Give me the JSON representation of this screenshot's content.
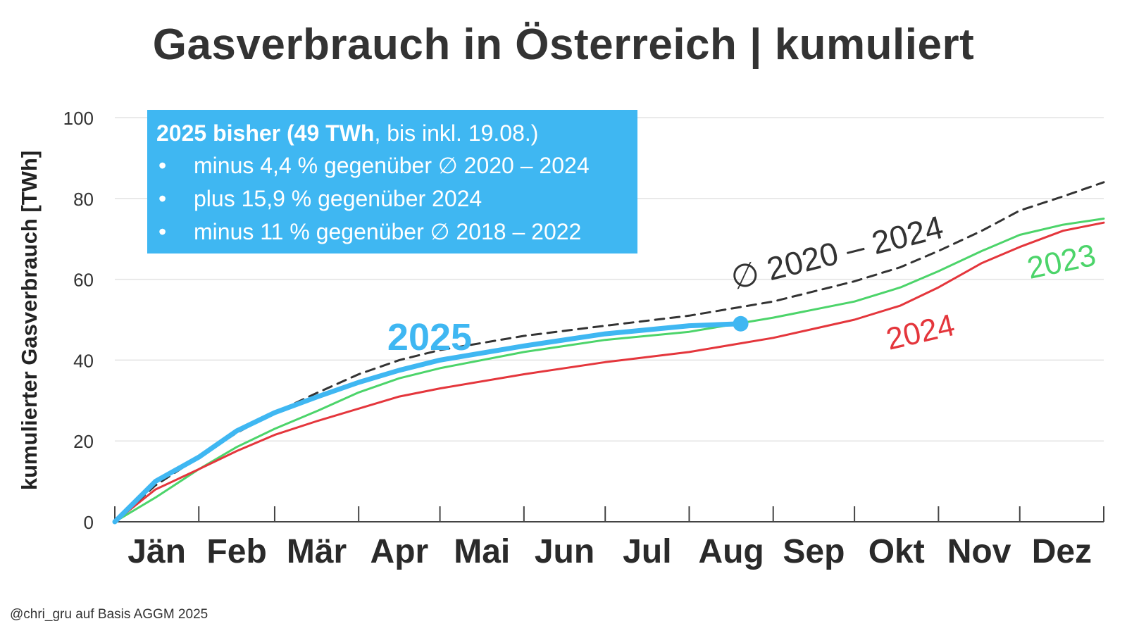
{
  "title": "Gasverbrauch in Österreich | kumuliert",
  "source": "@chri_gru auf Basis AGGM 2025",
  "infobox": {
    "heading_bold": "2025 bisher (49 TWh",
    "heading_rest": ", bis inkl. 19.08.)",
    "bullets": [
      "minus 4,4 % gegenüber ∅ 2020 – 2024",
      "plus 15,9 % gegenüber 2024",
      "minus 11 % gegenüber ∅ 2018 – 2022"
    ]
  },
  "chart_data": {
    "type": "line",
    "title": "Gasverbrauch in Österreich | kumuliert",
    "xlabel": "",
    "ylabel": "kumulierter Gasverbrauch [TWh]",
    "ylim": [
      0,
      100
    ],
    "yticks": [
      0,
      20,
      40,
      60,
      80,
      100
    ],
    "xlim": [
      0,
      365
    ],
    "month_ticks": [
      0,
      31,
      59,
      90,
      120,
      151,
      181,
      212,
      243,
      273,
      304,
      334,
      365
    ],
    "months": [
      "Jän",
      "Feb",
      "Mär",
      "Apr",
      "Mai",
      "Jun",
      "Jul",
      "Aug",
      "Sep",
      "Okt",
      "Nov",
      "Dez"
    ],
    "grid": true,
    "series": [
      {
        "name": "∅ 2020 – 2024",
        "color": "#333333",
        "style": "dashed",
        "points": [
          [
            0,
            0
          ],
          [
            15,
            9
          ],
          [
            31,
            16
          ],
          [
            45,
            22
          ],
          [
            59,
            27
          ],
          [
            75,
            32
          ],
          [
            90,
            36.5
          ],
          [
            105,
            40
          ],
          [
            120,
            42.5
          ],
          [
            151,
            46
          ],
          [
            181,
            48.5
          ],
          [
            212,
            51
          ],
          [
            243,
            54.5
          ],
          [
            273,
            59.5
          ],
          [
            290,
            63
          ],
          [
            304,
            67
          ],
          [
            320,
            72
          ],
          [
            334,
            77
          ],
          [
            350,
            80.5
          ],
          [
            365,
            84
          ]
        ]
      },
      {
        "name": "2023",
        "color": "#4cd46a",
        "style": "solid",
        "points": [
          [
            0,
            0
          ],
          [
            15,
            6
          ],
          [
            31,
            13
          ],
          [
            45,
            18.5
          ],
          [
            59,
            23
          ],
          [
            75,
            27.5
          ],
          [
            90,
            32
          ],
          [
            105,
            35.5
          ],
          [
            120,
            38
          ],
          [
            151,
            42
          ],
          [
            181,
            45
          ],
          [
            212,
            47
          ],
          [
            243,
            50.5
          ],
          [
            273,
            54.5
          ],
          [
            290,
            58
          ],
          [
            304,
            62
          ],
          [
            320,
            67
          ],
          [
            334,
            71
          ],
          [
            350,
            73.5
          ],
          [
            365,
            75
          ]
        ]
      },
      {
        "name": "2024",
        "color": "#e4363c",
        "style": "solid",
        "points": [
          [
            0,
            0
          ],
          [
            15,
            8
          ],
          [
            31,
            13
          ],
          [
            45,
            17.5
          ],
          [
            59,
            21.5
          ],
          [
            75,
            25
          ],
          [
            90,
            28
          ],
          [
            105,
            31
          ],
          [
            120,
            33
          ],
          [
            151,
            36.5
          ],
          [
            181,
            39.5
          ],
          [
            212,
            42
          ],
          [
            243,
            45.5
          ],
          [
            273,
            50
          ],
          [
            290,
            53.5
          ],
          [
            304,
            58
          ],
          [
            320,
            64
          ],
          [
            334,
            68
          ],
          [
            350,
            72
          ],
          [
            365,
            74
          ]
        ]
      },
      {
        "name": "2025",
        "color": "#3fb7f2",
        "style": "solid",
        "points": [
          [
            0,
            0
          ],
          [
            15,
            10
          ],
          [
            31,
            16
          ],
          [
            45,
            22.5
          ],
          [
            59,
            27
          ],
          [
            75,
            31
          ],
          [
            90,
            34.5
          ],
          [
            105,
            37.5
          ],
          [
            120,
            40
          ],
          [
            151,
            43.5
          ],
          [
            181,
            46.5
          ],
          [
            212,
            48.5
          ],
          [
            231,
            49
          ]
        ]
      }
    ],
    "annotations": [
      "2025",
      "2024",
      "2023",
      "∅ 2020 – 2024"
    ]
  }
}
